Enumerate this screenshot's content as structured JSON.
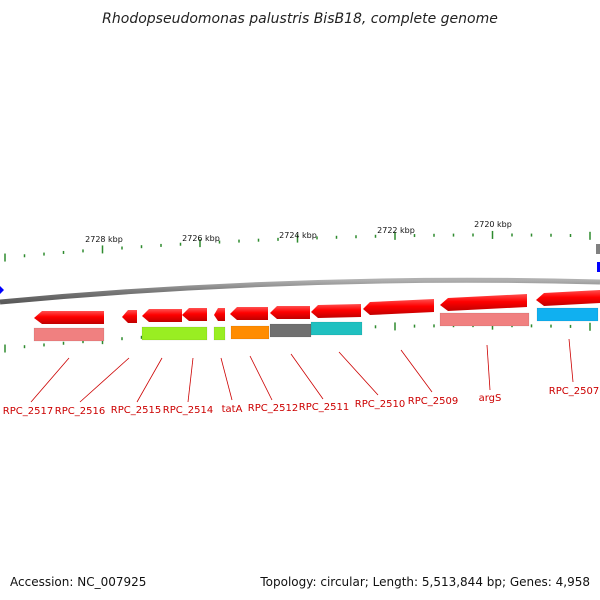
{
  "title": "Rhodopseudomonas palustris BisB18, complete genome",
  "footer": {
    "accession": "Accession: NC_007925",
    "summary": "Topology: circular; Length: 5,513,844 bp; Genes: 4,958"
  },
  "scale_labels": [
    "2728 kbp",
    "2726 kbp",
    "2724 kbp",
    "2722 kbp",
    "2720 kbp"
  ],
  "genes": [
    {
      "label": "RPC_2517",
      "color": "#ff0000",
      "cog_color": "#f08080"
    },
    {
      "label": "RPC_2516",
      "color": "#ff0000",
      "cog_color": ""
    },
    {
      "label": "RPC_2515",
      "color": "#ff0000",
      "cog_color": "#99ee22"
    },
    {
      "label": "RPC_2514",
      "color": "#ff0000",
      "cog_color": "#99ee22"
    },
    {
      "label": "tatA",
      "color": "#ff0000",
      "cog_color": "#99ee22"
    },
    {
      "label": "RPC_2512",
      "color": "#ff0000",
      "cog_color": "#ff8c00"
    },
    {
      "label": "RPC_2511",
      "color": "#ff0000",
      "cog_color": "#707070"
    },
    {
      "label": "RPC_2510",
      "color": "#ff0000",
      "cog_color": "#20c0c0"
    },
    {
      "label": "RPC_2509",
      "color": "#ff0000",
      "cog_color": ""
    },
    {
      "label": "argS",
      "color": "#ff0000",
      "cog_color": "#f08080"
    },
    {
      "label": "RPC_2507",
      "color": "#ff0000",
      "cog_color": "#10b0f0"
    }
  ],
  "colors": {
    "backbone": "#808080",
    "tick": "#2e8b2e",
    "label_line": "#cc0000",
    "marker_blue": "#0000ff"
  }
}
